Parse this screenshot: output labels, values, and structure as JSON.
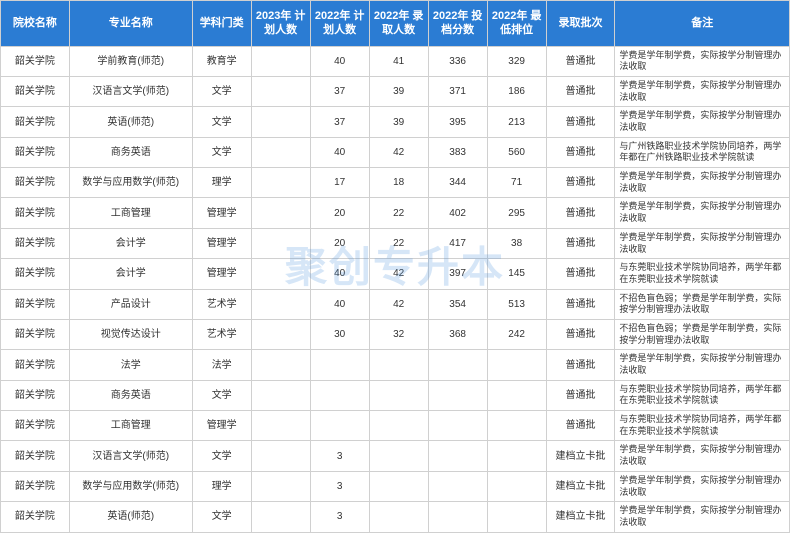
{
  "watermark": "聚创专升本",
  "columns": [
    "院校名称",
    "专业名称",
    "学科门类",
    "2023年\n计划人数",
    "2022年\n计划人数",
    "2022年\n录取人数",
    "2022年\n投档分数",
    "2022年\n最低排位",
    "录取批次",
    "备注"
  ],
  "rows": [
    [
      "韶关学院",
      "学前教育(师范)",
      "教育学",
      "",
      "40",
      "41",
      "336",
      "329",
      "普通批",
      "学费是学年制学费，实际按学分制管理办法收取"
    ],
    [
      "韶关学院",
      "汉语言文学(师范)",
      "文学",
      "",
      "37",
      "39",
      "371",
      "186",
      "普通批",
      "学费是学年制学费，实际按学分制管理办法收取"
    ],
    [
      "韶关学院",
      "英语(师范)",
      "文学",
      "",
      "37",
      "39",
      "395",
      "213",
      "普通批",
      "学费是学年制学费，实际按学分制管理办法收取"
    ],
    [
      "韶关学院",
      "商务英语",
      "文学",
      "",
      "40",
      "42",
      "383",
      "560",
      "普通批",
      "与广州铁路职业技术学院协同培养，两学年都在广州铁路职业技术学院就读"
    ],
    [
      "韶关学院",
      "数学与应用数学(师范)",
      "理学",
      "",
      "17",
      "18",
      "344",
      "71",
      "普通批",
      "学费是学年制学费，实际按学分制管理办法收取"
    ],
    [
      "韶关学院",
      "工商管理",
      "管理学",
      "",
      "20",
      "22",
      "402",
      "295",
      "普通批",
      "学费是学年制学费，实际按学分制管理办法收取"
    ],
    [
      "韶关学院",
      "会计学",
      "管理学",
      "",
      "20",
      "22",
      "417",
      "38",
      "普通批",
      "学费是学年制学费，实际按学分制管理办法收取"
    ],
    [
      "韶关学院",
      "会计学",
      "管理学",
      "",
      "40",
      "42",
      "397",
      "145",
      "普通批",
      "与东莞职业技术学院协同培养，两学年都在东莞职业技术学院就读"
    ],
    [
      "韶关学院",
      "产品设计",
      "艺术学",
      "",
      "40",
      "42",
      "354",
      "513",
      "普通批",
      "不招色盲色弱；学费是学年制学费，实际按学分制管理办法收取"
    ],
    [
      "韶关学院",
      "视觉传达设计",
      "艺术学",
      "",
      "30",
      "32",
      "368",
      "242",
      "普通批",
      "不招色盲色弱；学费是学年制学费，实际按学分制管理办法收取"
    ],
    [
      "韶关学院",
      "法学",
      "法学",
      "",
      "",
      "",
      "",
      "",
      "普通批",
      "学费是学年制学费，实际按学分制管理办法收取"
    ],
    [
      "韶关学院",
      "商务英语",
      "文学",
      "",
      "",
      "",
      "",
      "",
      "普通批",
      "与东莞职业技术学院协同培养，两学年都在东莞职业技术学院就读"
    ],
    [
      "韶关学院",
      "工商管理",
      "管理学",
      "",
      "",
      "",
      "",
      "",
      "普通批",
      "与东莞职业技术学院协同培养，两学年都在东莞职业技术学院就读"
    ],
    [
      "韶关学院",
      "汉语言文学(师范)",
      "文学",
      "",
      "3",
      "",
      "",
      "",
      "建档立卡批",
      "学费是学年制学费，实际按学分制管理办法收取"
    ],
    [
      "韶关学院",
      "数学与应用数学(师范)",
      "理学",
      "",
      "3",
      "",
      "",
      "",
      "建档立卡批",
      "学费是学年制学费，实际按学分制管理办法收取"
    ],
    [
      "韶关学院",
      "英语(师范)",
      "文学",
      "",
      "3",
      "",
      "",
      "",
      "建档立卡批",
      "学费是学年制学费，实际按学分制管理办法收取"
    ]
  ],
  "header_bg": "#2b7cd3",
  "header_fg": "#ffffff",
  "border_color": "#d0d0d0",
  "watermark_color": "rgba(70,140,220,0.22)"
}
